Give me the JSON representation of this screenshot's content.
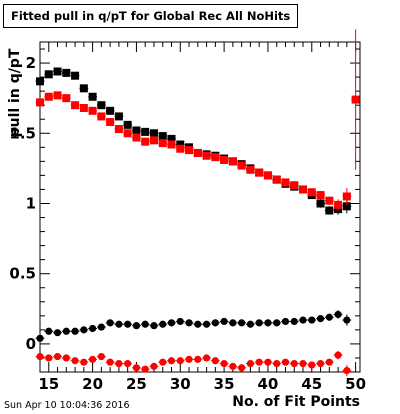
{
  "chart_data": {
    "type": "scatter",
    "title": "Fitted pull in q/pT for Global Rec All NoHits",
    "xlabel": "No. of Fit Points",
    "ylabel": "pull in q/pT",
    "datestamp": "Sun Apr 10 10:04:36 2016",
    "xlim": [
      14,
      50.5
    ],
    "ylim": [
      -0.2,
      2.15
    ],
    "x_ticks": [
      15,
      20,
      25,
      30,
      35,
      40,
      45,
      50
    ],
    "y_ticks": [
      0,
      0.5,
      1,
      1.5,
      2
    ],
    "grid": false,
    "series": [
      {
        "marker": "square",
        "color": "#000000",
        "x": [
          14,
          15,
          16,
          17,
          18,
          19,
          20,
          21,
          22,
          23,
          24,
          25,
          26,
          27,
          28,
          29,
          30,
          31,
          32,
          33,
          34,
          35,
          36,
          37,
          38,
          39,
          40,
          41,
          42,
          43,
          44,
          45,
          46,
          47,
          48,
          49
        ],
        "y": [
          1.87,
          1.92,
          1.94,
          1.93,
          1.91,
          1.82,
          1.76,
          1.7,
          1.66,
          1.62,
          1.56,
          1.52,
          1.51,
          1.5,
          1.48,
          1.46,
          1.42,
          1.4,
          1.36,
          1.35,
          1.34,
          1.32,
          1.3,
          1.28,
          1.25,
          1.22,
          1.2,
          1.17,
          1.14,
          1.12,
          1.1,
          1.06,
          1.0,
          0.95,
          0.96,
          0.98
        ],
        "err": [
          0.03,
          0.02,
          0.02,
          0.02,
          0.02,
          0.02,
          0.02,
          0.02,
          0.02,
          0.02,
          0.02,
          0.02,
          0.02,
          0.02,
          0.02,
          0.02,
          0.02,
          0.02,
          0.02,
          0.02,
          0.02,
          0.02,
          0.02,
          0.02,
          0.02,
          0.02,
          0.02,
          0.02,
          0.02,
          0.02,
          0.02,
          0.02,
          0.03,
          0.03,
          0.04,
          0.05
        ]
      },
      {
        "marker": "square",
        "color": "#ff0000",
        "x": [
          14,
          15,
          16,
          17,
          18,
          19,
          20,
          21,
          22,
          23,
          24,
          25,
          26,
          27,
          28,
          29,
          30,
          31,
          32,
          33,
          34,
          35,
          36,
          37,
          38,
          39,
          40,
          41,
          42,
          43,
          44,
          45,
          46,
          47,
          48,
          49,
          50
        ],
        "y": [
          1.72,
          1.76,
          1.77,
          1.75,
          1.7,
          1.68,
          1.66,
          1.62,
          1.58,
          1.53,
          1.5,
          1.47,
          1.44,
          1.45,
          1.43,
          1.42,
          1.39,
          1.38,
          1.36,
          1.34,
          1.33,
          1.31,
          1.3,
          1.27,
          1.24,
          1.22,
          1.2,
          1.17,
          1.15,
          1.13,
          1.1,
          1.08,
          1.06,
          1.02,
          0.99,
          1.05,
          1.74
        ],
        "err": [
          0.03,
          0.02,
          0.02,
          0.02,
          0.02,
          0.02,
          0.02,
          0.02,
          0.02,
          0.02,
          0.02,
          0.02,
          0.02,
          0.02,
          0.02,
          0.02,
          0.02,
          0.02,
          0.02,
          0.02,
          0.02,
          0.02,
          0.02,
          0.02,
          0.02,
          0.02,
          0.02,
          0.02,
          0.02,
          0.02,
          0.02,
          0.02,
          0.03,
          0.03,
          0.04,
          0.06,
          0.5
        ]
      },
      {
        "marker": "circle",
        "color": "#000000",
        "x": [
          14,
          15,
          16,
          17,
          18,
          19,
          20,
          21,
          22,
          23,
          24,
          25,
          26,
          27,
          28,
          29,
          30,
          31,
          32,
          33,
          34,
          35,
          36,
          37,
          38,
          39,
          40,
          41,
          42,
          43,
          44,
          45,
          46,
          47,
          48,
          49
        ],
        "y": [
          0.04,
          0.09,
          0.08,
          0.09,
          0.09,
          0.1,
          0.11,
          0.12,
          0.15,
          0.14,
          0.14,
          0.13,
          0.14,
          0.13,
          0.14,
          0.15,
          0.16,
          0.15,
          0.14,
          0.14,
          0.15,
          0.16,
          0.15,
          0.15,
          0.14,
          0.15,
          0.15,
          0.15,
          0.16,
          0.16,
          0.17,
          0.17,
          0.18,
          0.19,
          0.21,
          0.17
        ],
        "err": [
          0.01,
          0.01,
          0.01,
          0.01,
          0.01,
          0.01,
          0.01,
          0.01,
          0.01,
          0.01,
          0.01,
          0.01,
          0.01,
          0.01,
          0.01,
          0.01,
          0.01,
          0.01,
          0.01,
          0.01,
          0.01,
          0.01,
          0.01,
          0.01,
          0.01,
          0.01,
          0.01,
          0.01,
          0.01,
          0.01,
          0.01,
          0.01,
          0.02,
          0.02,
          0.03,
          0.04
        ]
      },
      {
        "marker": "circle",
        "color": "#ff0000",
        "x": [
          14,
          15,
          16,
          17,
          18,
          19,
          20,
          21,
          22,
          23,
          24,
          25,
          26,
          27,
          28,
          29,
          30,
          31,
          32,
          33,
          34,
          35,
          36,
          37,
          38,
          39,
          40,
          41,
          42,
          43,
          44,
          45,
          46,
          47,
          48,
          49
        ],
        "y": [
          -0.09,
          -0.1,
          -0.09,
          -0.1,
          -0.12,
          -0.13,
          -0.11,
          -0.09,
          -0.13,
          -0.14,
          -0.14,
          -0.17,
          -0.18,
          -0.16,
          -0.13,
          -0.12,
          -0.12,
          -0.11,
          -0.11,
          -0.1,
          -0.12,
          -0.14,
          -0.16,
          -0.17,
          -0.14,
          -0.13,
          -0.13,
          -0.14,
          -0.13,
          -0.14,
          -0.14,
          -0.15,
          -0.14,
          -0.13,
          -0.08,
          -0.19
        ],
        "err": [
          0.01,
          0.01,
          0.01,
          0.01,
          0.01,
          0.01,
          0.01,
          0.01,
          0.01,
          0.01,
          0.01,
          0.01,
          0.01,
          0.01,
          0.01,
          0.01,
          0.01,
          0.01,
          0.01,
          0.01,
          0.01,
          0.01,
          0.01,
          0.01,
          0.01,
          0.01,
          0.01,
          0.01,
          0.01,
          0.01,
          0.01,
          0.01,
          0.02,
          0.02,
          0.03,
          0.04
        ]
      }
    ]
  }
}
